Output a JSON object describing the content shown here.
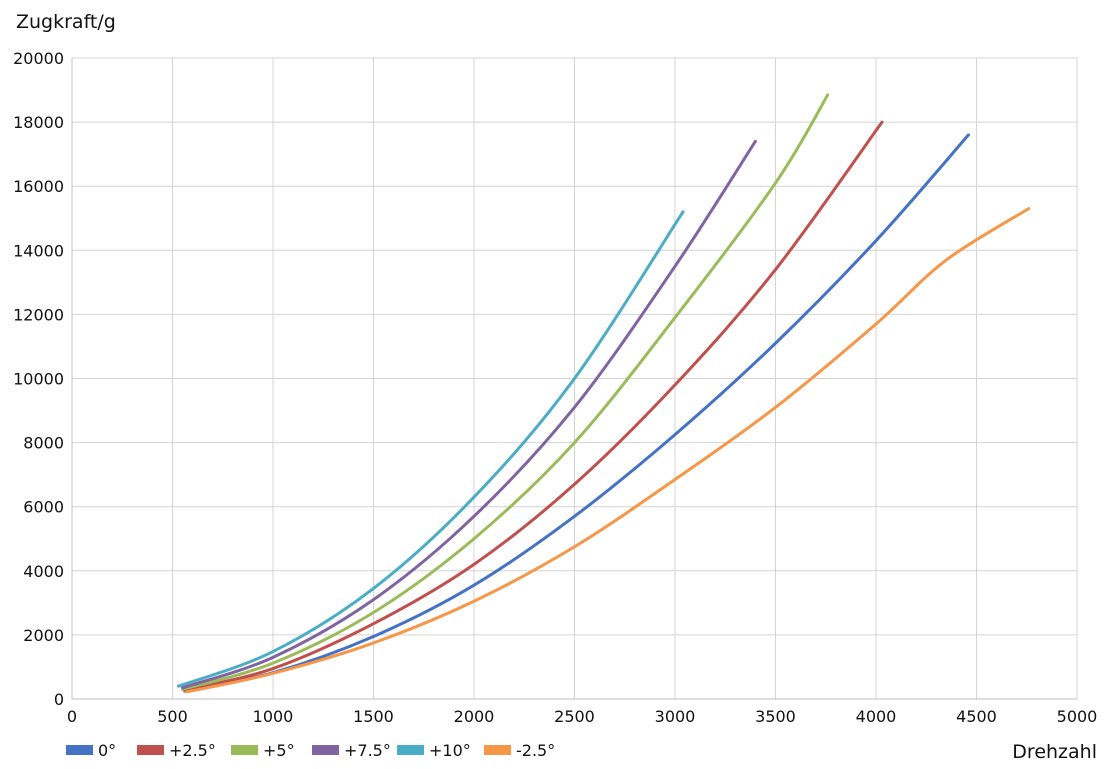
{
  "chart_data": {
    "type": "line",
    "ylabel": "Zugkraft/g",
    "xlabel": "Drehzahl",
    "xlim": [
      0,
      5000
    ],
    "ylim": [
      0,
      20000
    ],
    "xticks": [
      0,
      500,
      1000,
      1500,
      2000,
      2500,
      3000,
      3500,
      4000,
      4500,
      5000
    ],
    "yticks": [
      0,
      2000,
      4000,
      6000,
      8000,
      10000,
      12000,
      14000,
      16000,
      18000,
      20000
    ],
    "grid": true,
    "legend_position": "bottom-left",
    "series": [
      {
        "name": "0°",
        "color": "#4472c4",
        "points": [
          [
            560,
            250
          ],
          [
            1000,
            820
          ],
          [
            1500,
            1950
          ],
          [
            2000,
            3550
          ],
          [
            2500,
            5700
          ],
          [
            3000,
            8250
          ],
          [
            3500,
            11100
          ],
          [
            4000,
            14300
          ],
          [
            4460,
            17600
          ]
        ]
      },
      {
        "name": "+2.5°",
        "color": "#c0504d",
        "points": [
          [
            560,
            280
          ],
          [
            1000,
            950
          ],
          [
            1500,
            2350
          ],
          [
            2000,
            4200
          ],
          [
            2500,
            6700
          ],
          [
            3000,
            9800
          ],
          [
            3500,
            13400
          ],
          [
            4030,
            18000
          ]
        ]
      },
      {
        "name": "+5°",
        "color": "#9bbb59",
        "points": [
          [
            550,
            300
          ],
          [
            1000,
            1120
          ],
          [
            1500,
            2700
          ],
          [
            2000,
            5000
          ],
          [
            2500,
            8000
          ],
          [
            3000,
            11900
          ],
          [
            3500,
            16100
          ],
          [
            3760,
            18850
          ]
        ]
      },
      {
        "name": "+7.5°",
        "color": "#8064a2",
        "points": [
          [
            550,
            350
          ],
          [
            1000,
            1300
          ],
          [
            1500,
            3100
          ],
          [
            2000,
            5700
          ],
          [
            2500,
            9100
          ],
          [
            3000,
            13500
          ],
          [
            3400,
            17400
          ]
        ]
      },
      {
        "name": "+10°",
        "color": "#4bacc6",
        "points": [
          [
            530,
            400
          ],
          [
            1000,
            1480
          ],
          [
            1500,
            3450
          ],
          [
            2000,
            6300
          ],
          [
            2500,
            10000
          ],
          [
            3040,
            15200
          ]
        ]
      },
      {
        "name": "-2.5°",
        "color": "#f79646",
        "points": [
          [
            570,
            220
          ],
          [
            1000,
            800
          ],
          [
            1500,
            1750
          ],
          [
            2000,
            3050
          ],
          [
            2500,
            4750
          ],
          [
            3000,
            6850
          ],
          [
            3500,
            9100
          ],
          [
            4000,
            11700
          ],
          [
            4350,
            13700
          ],
          [
            4760,
            15300
          ]
        ]
      }
    ]
  }
}
